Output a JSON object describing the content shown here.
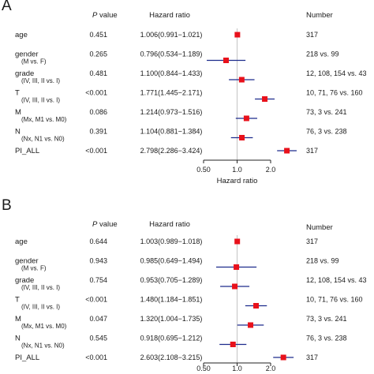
{
  "colors": {
    "marker": "#e8111b",
    "ci": "#1d2b8c",
    "reference": "#c4c4c4",
    "axis": "#222222"
  },
  "header": {
    "p_value": "P value",
    "p_italic": "P",
    "p_rest": " value",
    "hazard_ratio": "Hazard ratio",
    "number": "Number"
  },
  "chart_data": [
    {
      "type": "forest",
      "panel": "A",
      "x_scale": "log",
      "xlim": [
        0.5,
        2.0
      ],
      "xticks": [
        0.5,
        1.0,
        2.0
      ],
      "xtick_labels": [
        "0.50",
        "1.0",
        "2.0"
      ],
      "xlabel": "Hazard ratio",
      "reference_line": 1.0,
      "rows": [
        {
          "label": "age",
          "sublabel": "",
          "p_value": "0.451",
          "hr_text": "1.006(0.991−1.021)",
          "hr": 1.006,
          "lower": 0.991,
          "upper": 1.021,
          "number": "317"
        },
        {
          "label": "gender",
          "sublabel": "(M vs. F)",
          "p_value": "0.265",
          "hr_text": "0.796(0.534−1.189)",
          "hr": 0.796,
          "lower": 0.534,
          "upper": 1.189,
          "number": "218 vs. 99"
        },
        {
          "label": "grade",
          "sublabel": "(IV, III, II vs. I)",
          "p_value": "0.481",
          "hr_text": "1.100(0.844−1.433)",
          "hr": 1.1,
          "lower": 0.844,
          "upper": 1.433,
          "number": "12, 108, 154 vs. 43"
        },
        {
          "label": "T",
          "sublabel": "(IV, III, II vs. I)",
          "p_value": "<0.001",
          "hr_text": "1.771(1.445−2.171)",
          "hr": 1.771,
          "lower": 1.445,
          "upper": 2.171,
          "number": "10, 71, 76 vs. 160"
        },
        {
          "label": "M",
          "sublabel": "(Mx, M1 vs. M0)",
          "p_value": "0.086",
          "hr_text": "1.214(0.973−1.516)",
          "hr": 1.214,
          "lower": 0.973,
          "upper": 1.516,
          "number": "73, 3 vs. 241"
        },
        {
          "label": "N",
          "sublabel": "(Nx, N1 vs. N0)",
          "p_value": "0.391",
          "hr_text": "1.104(0.881−1.384)",
          "hr": 1.104,
          "lower": 0.881,
          "upper": 1.384,
          "number": "76, 3 vs. 238"
        },
        {
          "label": "PI_ALL",
          "sublabel": "",
          "p_value": "<0.001",
          "hr_text": "2.798(2.286−3.424)",
          "hr": 2.798,
          "lower": 2.286,
          "upper": 3.424,
          "number": "317"
        }
      ]
    },
    {
      "type": "forest",
      "panel": "B",
      "x_scale": "log",
      "xlim": [
        0.5,
        2.0
      ],
      "xticks": [
        0.5,
        1.0,
        2.0
      ],
      "xtick_labels": [
        "0.50",
        "1.0",
        "2.0"
      ],
      "xlabel": "",
      "reference_line": 1.0,
      "rows": [
        {
          "label": "age",
          "sublabel": "",
          "p_value": "0.644",
          "hr_text": "1.003(0.989−1.018)",
          "hr": 1.003,
          "lower": 0.989,
          "upper": 1.018,
          "number": "317"
        },
        {
          "label": "gender",
          "sublabel": "(M vs. F)",
          "p_value": "0.943",
          "hr_text": "0.985(0.649−1.494)",
          "hr": 0.985,
          "lower": 0.649,
          "upper": 1.494,
          "number": "218 vs. 99"
        },
        {
          "label": "grade",
          "sublabel": "(IV, III, II vs. I)",
          "p_value": "0.754",
          "hr_text": "0.953(0.705−1.289)",
          "hr": 0.953,
          "lower": 0.705,
          "upper": 1.289,
          "number": "12, 108, 154 vs. 43"
        },
        {
          "label": "T",
          "sublabel": "(IV, III, II vs. I)",
          "p_value": "<0.001",
          "hr_text": "1.480(1.184−1.851)",
          "hr": 1.48,
          "lower": 1.184,
          "upper": 1.851,
          "number": "10, 71, 76 vs. 160"
        },
        {
          "label": "M",
          "sublabel": "(Mx, M1 vs. M0)",
          "p_value": "0.047",
          "hr_text": "1.320(1.004−1.735)",
          "hr": 1.32,
          "lower": 1.004,
          "upper": 1.735,
          "number": "73, 3 vs. 241"
        },
        {
          "label": "N",
          "sublabel": "(Nx, N1 vs. N0)",
          "p_value": "0.545",
          "hr_text": "0.918(0.695−1.212)",
          "hr": 0.918,
          "lower": 0.695,
          "upper": 1.212,
          "number": "76, 3 vs. 238"
        },
        {
          "label": "PI_ALL",
          "sublabel": "",
          "p_value": "<0.001",
          "hr_text": "2.603(2.108−3.215)",
          "hr": 2.603,
          "lower": 2.108,
          "upper": 3.215,
          "number": "317"
        }
      ]
    }
  ]
}
